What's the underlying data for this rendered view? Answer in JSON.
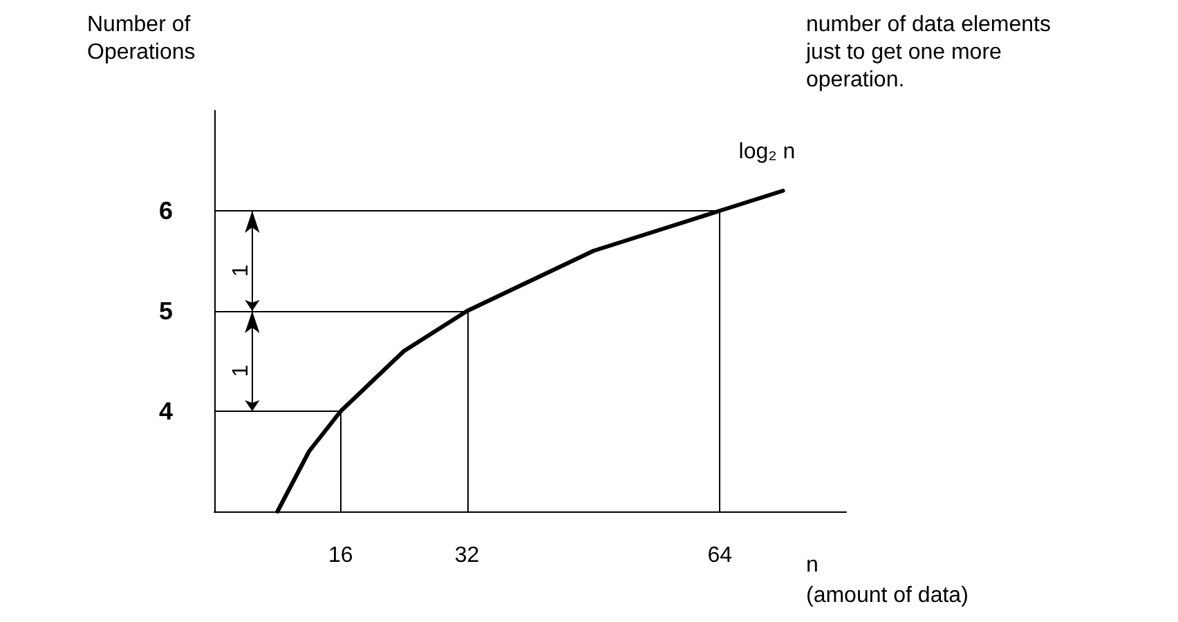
{
  "chart_data": {
    "type": "line",
    "ylabel": "Number of Operations",
    "xlabel": "n (amount of data)",
    "x": [
      8,
      10,
      12,
      14,
      16,
      20,
      24,
      28,
      32,
      40,
      48,
      56,
      64,
      72
    ],
    "series": [
      {
        "name": "log₂ n",
        "color": "#000000",
        "values": [
          3,
          3.3,
          3.6,
          3.8,
          4,
          4.3,
          4.6,
          4.8,
          5,
          5.3,
          5.6,
          5.8,
          6,
          6.2
        ]
      }
    ],
    "xlim": [
      0,
      80
    ],
    "xticks": [
      16,
      32,
      64
    ],
    "ylim": [
      3,
      7
    ],
    "yticks": [
      4,
      5,
      6
    ],
    "ref_lines": [
      {
        "axis": "y",
        "value": 4
      },
      {
        "axis": "y",
        "value": 5
      },
      {
        "axis": "y",
        "value": 6
      },
      {
        "axis": "x",
        "value": 16
      },
      {
        "axis": "x",
        "value": 32
      },
      {
        "axis": "x",
        "value": 64
      }
    ],
    "annotations": [
      "1",
      "1",
      "number of data elements just to get one more operation."
    ],
    "grid": false,
    "legend": false,
    "marker": "none",
    "line_style": "solid"
  }
}
